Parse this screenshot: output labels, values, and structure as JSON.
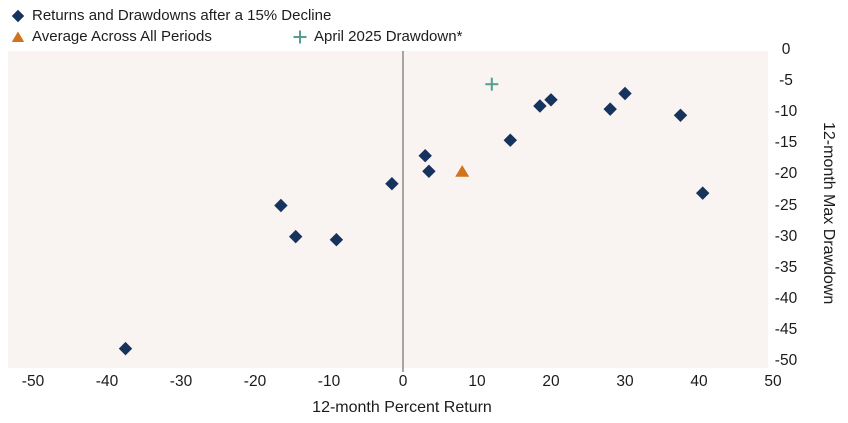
{
  "legend": {
    "items": [
      {
        "label": "Returns and Drawdowns after a 15% Decline",
        "marker": "diamond",
        "color": "#16335e"
      },
      {
        "label": "Average Across All Periods",
        "marker": "triangle",
        "color": "#d2721c"
      },
      {
        "label": "April 2025 Drawdown*",
        "marker": "plus",
        "color": "#53a08e"
      }
    ]
  },
  "axes": {
    "x_title": "12-month Percent Return",
    "y_title": "12-month Max Drawdown"
  },
  "chart_data": {
    "type": "scatter",
    "title": "",
    "xlabel": "12-month Percent Return",
    "ylabel": "12-month Max Drawdown",
    "xlim": [
      -50,
      50
    ],
    "ylim": [
      -50,
      0
    ],
    "x_ticks": [
      -50,
      -40,
      -30,
      -20,
      -10,
      0,
      10,
      20,
      30,
      40,
      50
    ],
    "y_ticks": [
      0,
      -5,
      -10,
      -15,
      -20,
      -25,
      -30,
      -35,
      -40,
      -45,
      -50
    ],
    "grid": false,
    "zero_line_x": 0,
    "legend_position": "top-left",
    "plot_bg": "#f9f3f1",
    "series": [
      {
        "name": "Returns and Drawdowns after a 15% Decline",
        "marker": "diamond",
        "color": "#16335e",
        "points": [
          [
            -37.5,
            -48
          ],
          [
            -16.5,
            -25
          ],
          [
            -14.5,
            -30
          ],
          [
            -9,
            -30.5
          ],
          [
            -1.5,
            -21.5
          ],
          [
            3,
            -17
          ],
          [
            3.5,
            -19.5
          ],
          [
            14.5,
            -14.5
          ],
          [
            18.5,
            -9
          ],
          [
            20,
            -8
          ],
          [
            28,
            -9.5
          ],
          [
            30,
            -7
          ],
          [
            37.5,
            -10.5
          ],
          [
            40.5,
            -23
          ]
        ]
      },
      {
        "name": "Average Across All Periods",
        "marker": "triangle",
        "color": "#d2721c",
        "points": [
          [
            8,
            -19.5
          ]
        ]
      },
      {
        "name": "April 2025 Drawdown*",
        "marker": "plus",
        "color": "#53a08e",
        "points": [
          [
            12,
            -5.5
          ]
        ]
      }
    ]
  }
}
